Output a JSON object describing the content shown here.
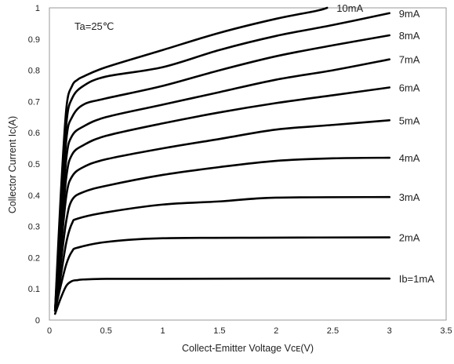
{
  "chart_data": {
    "type": "line",
    "title": "",
    "xlabel": "Collect-Emitter Voltage Vᴄᴇ(V)",
    "ylabel": "Collector Current Ic(A)",
    "xlim": [
      0,
      3.5
    ],
    "ylim": [
      0,
      1
    ],
    "xticks": [
      "0",
      "0.5",
      "1",
      "1.5",
      "2",
      "2.5",
      "3",
      "3.5"
    ],
    "yticks": [
      "0",
      "0.1",
      "0.2",
      "0.3",
      "0.4",
      "0.5",
      "0.6",
      "0.7",
      "0.8",
      "0.9",
      "1"
    ],
    "annotation": "Ta=25℃",
    "grid": false,
    "line_color": "#000000",
    "series": [
      {
        "name": "Ib=1mA",
        "x": [
          0.05,
          0.1,
          0.15,
          0.2,
          0.25,
          0.3,
          0.5,
          1,
          2,
          3
        ],
        "y": [
          0.02,
          0.07,
          0.11,
          0.125,
          0.128,
          0.13,
          0.132,
          0.132,
          0.133,
          0.133
        ]
      },
      {
        "name": "2mA",
        "x": [
          0.05,
          0.1,
          0.15,
          0.2,
          0.25,
          0.5,
          1,
          2,
          3
        ],
        "y": [
          0.03,
          0.11,
          0.18,
          0.22,
          0.232,
          0.25,
          0.262,
          0.264,
          0.265
        ]
      },
      {
        "name": "3mA",
        "x": [
          0.05,
          0.1,
          0.15,
          0.2,
          0.25,
          0.5,
          1,
          1.5,
          2,
          3
        ],
        "y": [
          0.03,
          0.14,
          0.25,
          0.31,
          0.325,
          0.345,
          0.37,
          0.38,
          0.392,
          0.394
        ]
      },
      {
        "name": "4mA",
        "x": [
          0.05,
          0.1,
          0.15,
          0.2,
          0.3,
          0.5,
          1,
          1.5,
          2,
          2.5,
          3
        ],
        "y": [
          0.03,
          0.18,
          0.32,
          0.385,
          0.41,
          0.43,
          0.465,
          0.49,
          0.51,
          0.518,
          0.52
        ]
      },
      {
        "name": "5mA",
        "x": [
          0.05,
          0.1,
          0.15,
          0.2,
          0.3,
          0.5,
          1,
          1.5,
          2,
          2.5,
          3
        ],
        "y": [
          0.03,
          0.22,
          0.4,
          0.46,
          0.49,
          0.515,
          0.55,
          0.58,
          0.61,
          0.625,
          0.64
        ]
      },
      {
        "name": "6mA",
        "x": [
          0.05,
          0.1,
          0.15,
          0.2,
          0.3,
          0.5,
          1,
          1.5,
          2,
          2.5,
          3
        ],
        "y": [
          0.03,
          0.25,
          0.46,
          0.53,
          0.56,
          0.59,
          0.63,
          0.665,
          0.695,
          0.72,
          0.745
        ]
      },
      {
        "name": "7mA",
        "x": [
          0.05,
          0.1,
          0.15,
          0.2,
          0.3,
          0.5,
          1,
          1.5,
          2,
          2.5,
          3
        ],
        "y": [
          0.03,
          0.28,
          0.52,
          0.59,
          0.62,
          0.65,
          0.69,
          0.73,
          0.77,
          0.8,
          0.835
        ]
      },
      {
        "name": "8mA",
        "x": [
          0.05,
          0.1,
          0.15,
          0.2,
          0.3,
          0.5,
          1,
          1.5,
          2,
          2.5,
          3
        ],
        "y": [
          0.03,
          0.31,
          0.58,
          0.65,
          0.69,
          0.71,
          0.75,
          0.8,
          0.845,
          0.88,
          0.912
        ]
      },
      {
        "name": "9mA",
        "x": [
          0.05,
          0.1,
          0.15,
          0.2,
          0.3,
          0.5,
          1,
          1.5,
          2,
          2.5,
          3
        ],
        "y": [
          0.03,
          0.35,
          0.63,
          0.71,
          0.75,
          0.78,
          0.81,
          0.865,
          0.91,
          0.945,
          0.983
        ]
      },
      {
        "name": "10mA",
        "x": [
          0.05,
          0.1,
          0.15,
          0.2,
          0.25,
          0.3,
          0.5,
          1,
          1.5,
          2,
          2.35,
          2.45
        ],
        "y": [
          0.03,
          0.4,
          0.68,
          0.75,
          0.77,
          0.78,
          0.81,
          0.865,
          0.92,
          0.965,
          0.99,
          1.0
        ]
      }
    ]
  }
}
